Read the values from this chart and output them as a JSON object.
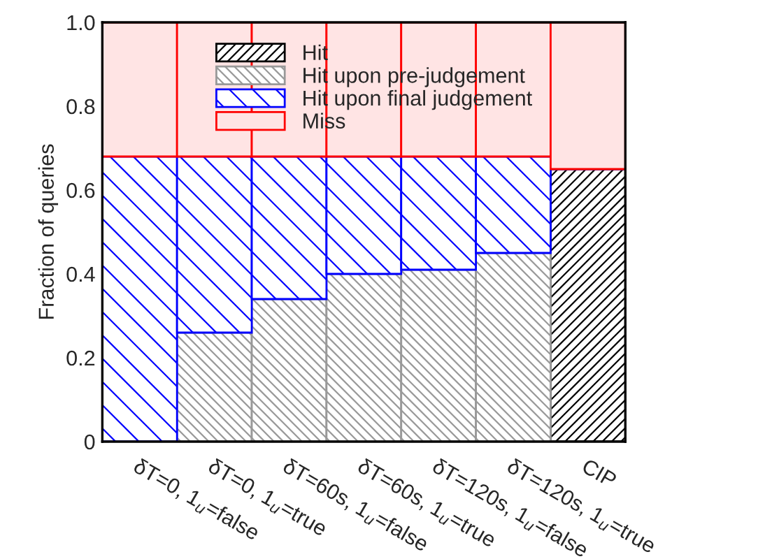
{
  "chart_data": {
    "type": "bar",
    "stacked": true,
    "ylabel": "Fraction of queries",
    "categories": [
      "δT=0, 1$_{u}$=false",
      "δT=0, 1$_{u}$=true",
      "δT=60s, 1$_{u}$=false",
      "δT=60s, 1$_{u}$=true",
      "δT=120s, 1$_{u}$=false",
      "δT=120s, 1$_{u}$=true",
      "CIP"
    ],
    "series": [
      {
        "name": "Hit",
        "color": "#000000",
        "values": [
          0,
          0,
          0,
          0,
          0,
          0,
          0.65
        ]
      },
      {
        "name": "Hit upon pre-judgement",
        "color": "#999999",
        "values": [
          0,
          0.26,
          0.34,
          0.4,
          0.41,
          0.45,
          0
        ]
      },
      {
        "name": "Hit upon final judgement",
        "color": "#0000ff",
        "values": [
          0.68,
          0.42,
          0.34,
          0.28,
          0.27,
          0.23,
          0
        ]
      },
      {
        "name": "Miss",
        "color": "#ff0000",
        "values": [
          0.32,
          0.32,
          0.32,
          0.32,
          0.32,
          0.32,
          0.35
        ]
      }
    ],
    "ylim": [
      0,
      1.0
    ],
    "yticks": [
      0,
      0.2,
      0.4,
      0.6,
      0.8,
      {
        "value": 1.0,
        "label": "1.0"
      }
    ],
    "legend": "top"
  }
}
